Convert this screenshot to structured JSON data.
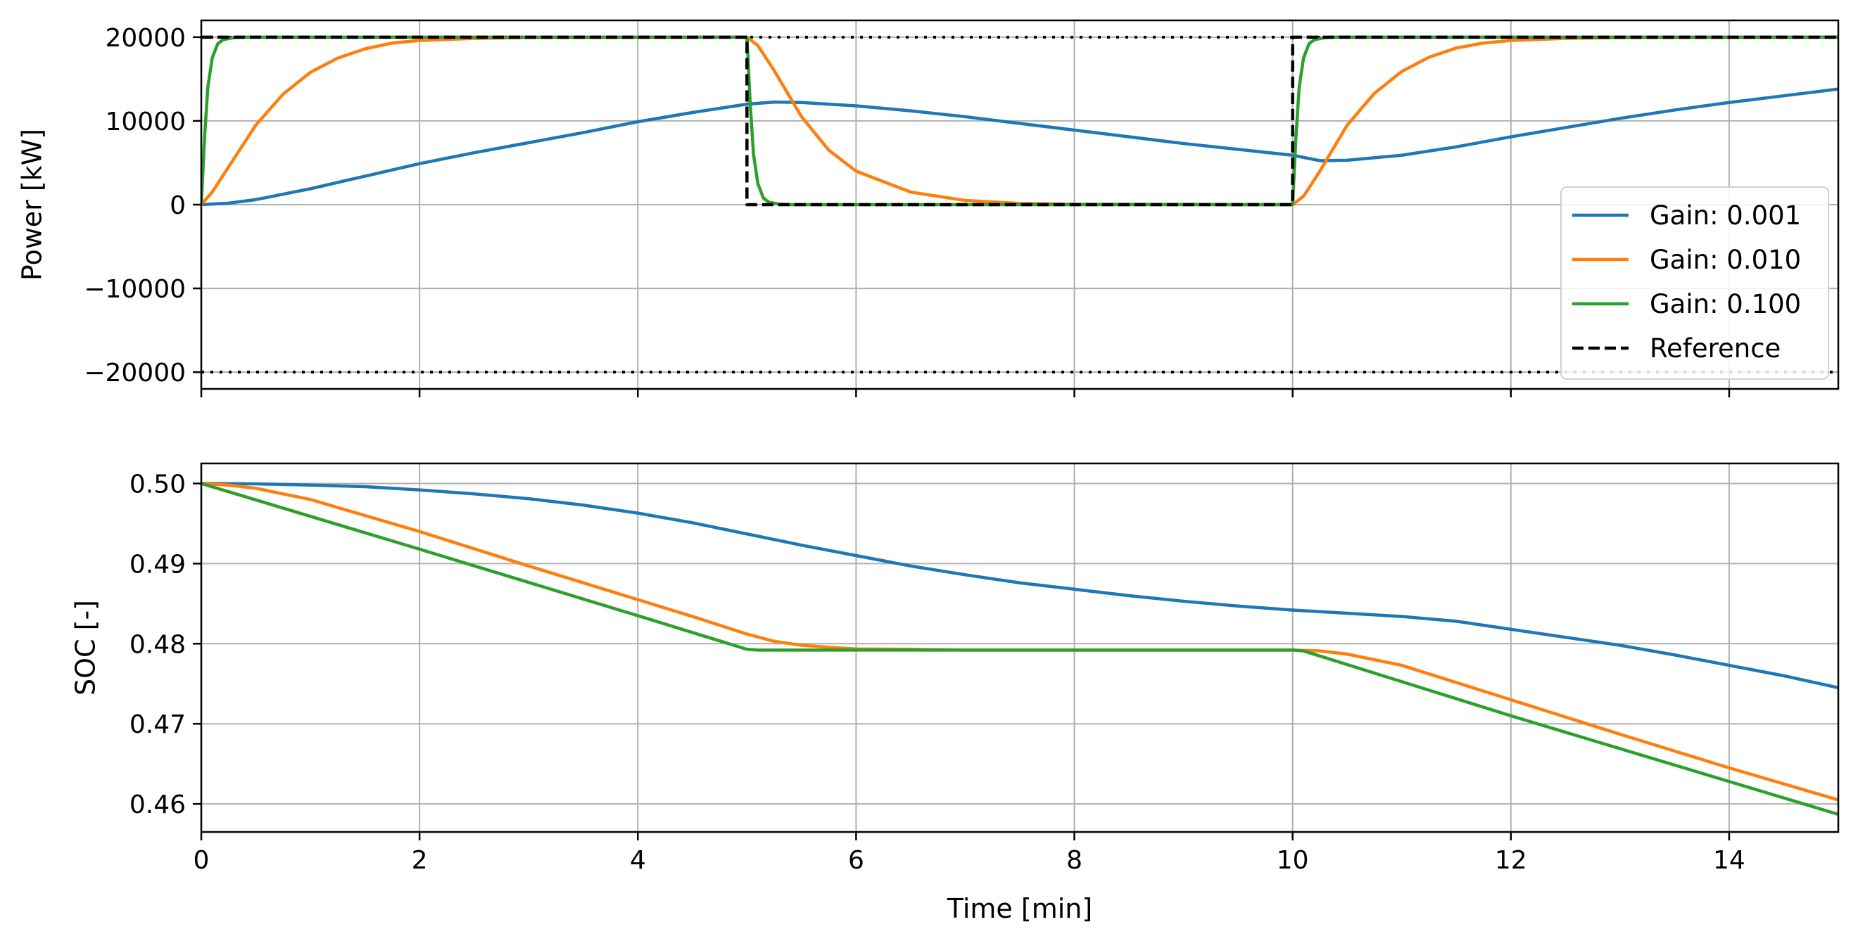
{
  "chart_data": [
    {
      "type": "line",
      "title": "",
      "xlabel": "",
      "ylabel": "Power [kW]",
      "xlim": [
        0,
        15
      ],
      "ylim": [
        -22000,
        22000
      ],
      "xticks": [
        0,
        2,
        4,
        6,
        8,
        10,
        12,
        14
      ],
      "yticks": [
        -20000,
        -10000,
        0,
        10000,
        20000
      ],
      "ytick_labels": [
        "−20000",
        "−10000",
        "0",
        "10000",
        "20000"
      ],
      "grid": true,
      "legend_position": "lower-right",
      "limit_lines": [
        20000,
        -20000
      ],
      "series": [
        {
          "name": "Gain: 0.001",
          "color": "#1f77b4",
          "style": "solid",
          "x": [
            0,
            0.25,
            0.5,
            1,
            1.5,
            2,
            2.5,
            3,
            3.5,
            4,
            4.5,
            5,
            5.25,
            5.5,
            6,
            6.5,
            7,
            7.5,
            8,
            8.5,
            9,
            9.5,
            10,
            10.25,
            10.5,
            11,
            11.5,
            12,
            12.5,
            13,
            13.5,
            14,
            14.5,
            15
          ],
          "y": [
            0,
            180,
            600,
            1900,
            3400,
            4900,
            6200,
            7400,
            8600,
            9900,
            11000,
            12000,
            12250,
            12200,
            11800,
            11200,
            10500,
            9700,
            8900,
            8100,
            7300,
            6600,
            5900,
            5250,
            5300,
            5900,
            6900,
            8100,
            9200,
            10300,
            11300,
            12200,
            13000,
            13800
          ]
        },
        {
          "name": "Gain: 0.010",
          "color": "#ff7f0e",
          "style": "solid",
          "x": [
            0,
            0.1,
            0.25,
            0.5,
            0.75,
            1,
            1.25,
            1.5,
            1.75,
            2,
            2.5,
            3,
            5,
            5.1,
            5.25,
            5.5,
            5.75,
            6,
            6.5,
            7,
            7.5,
            8,
            10,
            10.1,
            10.25,
            10.5,
            10.75,
            11,
            11.25,
            11.5,
            11.75,
            12,
            12.5,
            13,
            15
          ],
          "y": [
            0,
            1500,
            4500,
            9500,
            13200,
            15800,
            17500,
            18600,
            19300,
            19600,
            19850,
            19950,
            20000,
            19000,
            16000,
            10500,
            6500,
            4000,
            1500,
            500,
            150,
            50,
            0,
            1000,
            4000,
            9500,
            13300,
            15900,
            17600,
            18700,
            19300,
            19600,
            19850,
            19950,
            20000
          ]
        },
        {
          "name": "Gain: 0.100",
          "color": "#2ca02c",
          "style": "solid",
          "x": [
            0,
            0.03,
            0.06,
            0.1,
            0.15,
            0.2,
            0.3,
            0.4,
            5,
            5.03,
            5.06,
            5.1,
            5.15,
            5.2,
            5.3,
            5.4,
            10,
            10.03,
            10.06,
            10.1,
            10.15,
            10.2,
            10.3,
            10.4,
            15
          ],
          "y": [
            0,
            8000,
            14000,
            17500,
            19200,
            19700,
            19950,
            20000,
            20000,
            12000,
            6000,
            2500,
            800,
            300,
            50,
            0,
            0,
            8000,
            14000,
            17500,
            19200,
            19700,
            19950,
            20000,
            20000
          ]
        },
        {
          "name": "Reference",
          "color": "#000000",
          "style": "dashed",
          "x": [
            0,
            5,
            5,
            10,
            10,
            15
          ],
          "y": [
            20000,
            20000,
            0,
            0,
            20000,
            20000
          ]
        }
      ]
    },
    {
      "type": "line",
      "title": "",
      "xlabel": "Time [min]",
      "ylabel": "SOC [-]",
      "xlim": [
        0,
        15
      ],
      "ylim": [
        0.4565,
        0.5025
      ],
      "xticks": [
        0,
        2,
        4,
        6,
        8,
        10,
        12,
        14
      ],
      "yticks": [
        0.46,
        0.47,
        0.48,
        0.49,
        0.5
      ],
      "ytick_labels": [
        "0.46",
        "0.47",
        "0.48",
        "0.49",
        "0.50"
      ],
      "grid": true,
      "series": [
        {
          "name": "Gain: 0.001",
          "color": "#1f77b4",
          "style": "solid",
          "x": [
            0,
            0.5,
            1,
            1.5,
            2,
            2.5,
            3,
            3.5,
            4,
            4.5,
            5,
            5.5,
            6,
            6.5,
            7,
            7.5,
            8,
            8.5,
            9,
            9.5,
            10,
            10.5,
            11,
            11.5,
            12,
            12.5,
            13,
            13.5,
            14,
            14.5,
            15
          ],
          "y": [
            0.5,
            0.49995,
            0.4998,
            0.4996,
            0.4992,
            0.4987,
            0.4981,
            0.4973,
            0.4963,
            0.4951,
            0.4937,
            0.4923,
            0.491,
            0.4897,
            0.4886,
            0.4876,
            0.4868,
            0.486,
            0.4853,
            0.4847,
            0.4842,
            0.4838,
            0.4834,
            0.4828,
            0.4818,
            0.4808,
            0.4798,
            0.4786,
            0.4773,
            0.476,
            0.4745
          ]
        },
        {
          "name": "Gain: 0.010",
          "color": "#ff7f0e",
          "style": "solid",
          "x": [
            0,
            0.25,
            0.5,
            1,
            2,
            3,
            4,
            4.5,
            5,
            5.25,
            5.5,
            5.75,
            6,
            6.5,
            7,
            10,
            10.25,
            10.5,
            11,
            12,
            13,
            14,
            15
          ],
          "y": [
            0.5,
            0.4998,
            0.4994,
            0.498,
            0.494,
            0.4897,
            0.4855,
            0.4834,
            0.4812,
            0.4803,
            0.4798,
            0.47955,
            0.47935,
            0.4793,
            0.4792,
            0.4792,
            0.4791,
            0.4787,
            0.4773,
            0.473,
            0.4687,
            0.4645,
            0.4605
          ]
        },
        {
          "name": "Gain: 0.100",
          "color": "#2ca02c",
          "style": "solid",
          "x": [
            0,
            2,
            4,
            5,
            5.1,
            10,
            10.1,
            12,
            14,
            15
          ],
          "y": [
            0.5,
            0.4918,
            0.4835,
            0.4793,
            0.4792,
            0.4792,
            0.4791,
            0.471,
            0.4628,
            0.4587
          ]
        }
      ]
    }
  ]
}
